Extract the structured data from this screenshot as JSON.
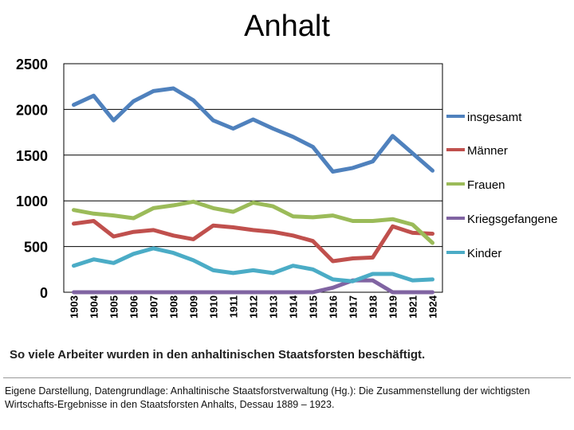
{
  "chart_data": {
    "type": "line",
    "title": "Anhalt",
    "categories": [
      "1903",
      "1904",
      "1905",
      "1906",
      "1907",
      "1908",
      "1909",
      "1910",
      "1911",
      "1912",
      "1913",
      "1914",
      "1915",
      "1916",
      "1917",
      "1918",
      "1919",
      "1921",
      "1924"
    ],
    "ylim": [
      0,
      2500
    ],
    "yticks": [
      "0",
      "500",
      "1000",
      "1500",
      "2000",
      "2500"
    ],
    "grid": true,
    "legend_position": "right",
    "series": [
      {
        "name": "insgesamt",
        "color": "#4F81BD",
        "values": [
          2050,
          2150,
          1880,
          2090,
          2200,
          2230,
          2100,
          1880,
          1790,
          1890,
          1790,
          1700,
          1590,
          1320,
          1360,
          1430,
          1710,
          1520,
          1330
        ]
      },
      {
        "name": "Männer",
        "color": "#C0504D",
        "values": [
          750,
          780,
          610,
          660,
          680,
          620,
          580,
          730,
          710,
          680,
          660,
          620,
          560,
          340,
          370,
          380,
          720,
          650,
          640
        ]
      },
      {
        "name": "Frauen",
        "color": "#9BBB59",
        "values": [
          900,
          860,
          840,
          810,
          920,
          950,
          990,
          920,
          880,
          980,
          940,
          830,
          820,
          840,
          780,
          780,
          800,
          740,
          540
        ]
      },
      {
        "name": "Kriegsgefangene",
        "color": "#8064A2",
        "values": [
          0,
          0,
          0,
          0,
          0,
          0,
          0,
          0,
          0,
          0,
          0,
          0,
          0,
          50,
          130,
          130,
          0,
          0,
          0
        ]
      },
      {
        "name": "Kinder",
        "color": "#4BACC6",
        "values": [
          290,
          360,
          320,
          420,
          480,
          430,
          350,
          240,
          210,
          240,
          210,
          290,
          250,
          140,
          120,
          200,
          200,
          130,
          140
        ]
      }
    ]
  },
  "caption": "So viele Arbeiter wurden in den anhaltinischen Staatsforsten beschäftigt.",
  "source": "Eigene Darstellung, Datengrundlage: Anhaltinische Staatsforstverwaltung (Hg.): Die Zusammenstellung der wichtigsten Wirtschafts-Ergebnisse in den Staatsforsten Anhalts, Dessau 1889 – 1923."
}
